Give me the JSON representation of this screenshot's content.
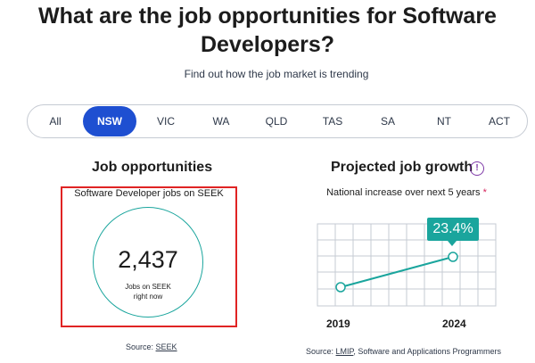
{
  "header": {
    "title_line1": "What are the job opportunities for Software",
    "title_line2": "Developers?",
    "subtitle": "Find out how the job market is trending"
  },
  "tabs": [
    {
      "label": "All",
      "active": false
    },
    {
      "label": "NSW",
      "active": true
    },
    {
      "label": "VIC",
      "active": false
    },
    {
      "label": "WA",
      "active": false
    },
    {
      "label": "QLD",
      "active": false
    },
    {
      "label": "TAS",
      "active": false
    },
    {
      "label": "SA",
      "active": false
    },
    {
      "label": "NT",
      "active": false
    },
    {
      "label": "ACT",
      "active": false
    }
  ],
  "opportunities": {
    "heading": "Job opportunities",
    "caption": "Software Developer jobs on SEEK",
    "count": "2,437",
    "sub_line1": "Jobs on SEEK",
    "sub_line2": "right now",
    "source_label": "Source:",
    "source_link": "SEEK"
  },
  "growth": {
    "heading": "Projected job growth",
    "info_icon": "info-icon",
    "caption": "National increase over next 5 years",
    "asterisk": "*",
    "badge": "23.4%",
    "start_year": "2019",
    "end_year": "2024",
    "source_label": "Source:",
    "source_link": "LMIP",
    "source_rest": ", Software and Applications Programmers"
  },
  "colors": {
    "accent_blue": "#1e4fd1",
    "teal": "#1aa59d",
    "highlight_red": "#e02424",
    "info_purple": "#7f3aa8"
  }
}
